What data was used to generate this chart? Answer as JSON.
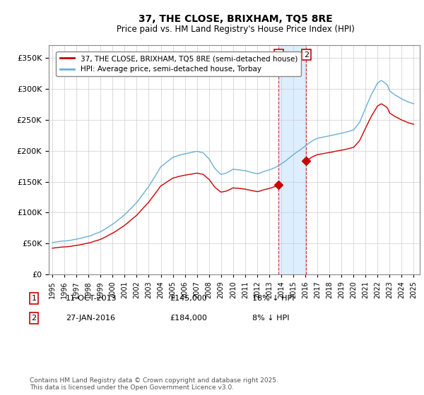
{
  "title": "37, THE CLOSE, BRIXHAM, TQ5 8RE",
  "subtitle": "Price paid vs. HM Land Registry's House Price Index (HPI)",
  "legend_entry1": "37, THE CLOSE, BRIXHAM, TQ5 8RE (semi-detached house)",
  "legend_entry2": "HPI: Average price, semi-detached house, Torbay",
  "transaction1_date": "11-OCT-2013",
  "transaction1_price": "£145,000",
  "transaction1_hpi": "18% ↓ HPI",
  "transaction2_date": "27-JAN-2016",
  "transaction2_price": "£184,000",
  "transaction2_hpi": "8% ↓ HPI",
  "footnote": "Contains HM Land Registry data © Crown copyright and database right 2025.\nThis data is licensed under the Open Government Licence v3.0.",
  "hpi_color": "#6baed6",
  "price_color": "#cc0000",
  "shading_color": "#ddeeff",
  "ylim": [
    0,
    370000
  ],
  "xlim_start": 1994.7,
  "xlim_end": 2025.5,
  "t1_year": 2013.79,
  "t2_year": 2016.08,
  "t1_price": 145000,
  "t2_price": 184000
}
